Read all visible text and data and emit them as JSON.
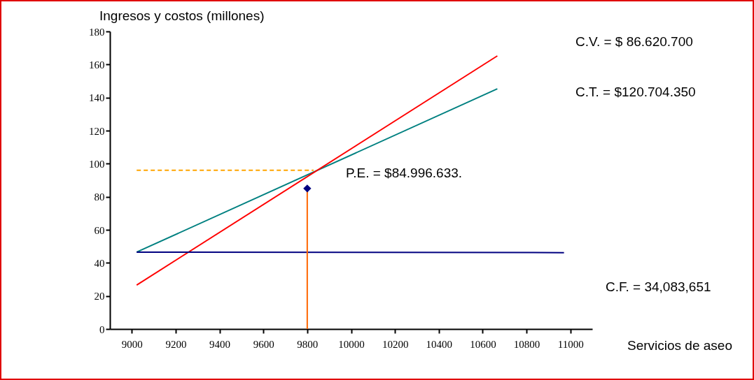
{
  "chart_data": {
    "type": "line",
    "ylabel": "Ingresos y costos (millones)",
    "xlabel": "Servicios de aseo",
    "xlim": [
      8900,
      11100
    ],
    "xticks": [
      9000,
      9200,
      9400,
      9600,
      9800,
      10000,
      10200,
      10400,
      10600,
      10800,
      11000
    ],
    "ylim": [
      0,
      180
    ],
    "yticks": [
      0,
      20,
      40,
      60,
      80,
      100,
      120,
      140,
      160,
      180
    ],
    "grid": false,
    "series": [
      {
        "type": "line",
        "color": "#008080",
        "x": [
          9022,
          10667
        ],
        "values": [
          46.5,
          145.3
        ]
      },
      {
        "type": "line",
        "color": "#ff0000",
        "x": [
          9022,
          10667
        ],
        "values": [
          26.6,
          165.2
        ]
      },
      {
        "type": "line",
        "color": "#000080",
        "x": [
          9022,
          10971
        ],
        "values": [
          46.5,
          46.2
        ]
      },
      {
        "type": "line",
        "color": "#ffa500",
        "line_style": "dashed",
        "x": [
          9022,
          9829
        ],
        "values": [
          96,
          96
        ]
      },
      {
        "type": "line",
        "color": "#ff6600",
        "x": [
          9800,
          9800
        ],
        "values": [
          0,
          85
        ]
      },
      {
        "type": "scatter",
        "color": "#000080",
        "marker": "diamond",
        "x": [
          9800
        ],
        "values": [
          85
        ]
      }
    ],
    "annotations": [
      "C.V. = $  86.620.700",
      "C.T. = $120.704.350",
      "P.E. = $84.996.633.",
      "C.F. = 34,083,651"
    ]
  }
}
